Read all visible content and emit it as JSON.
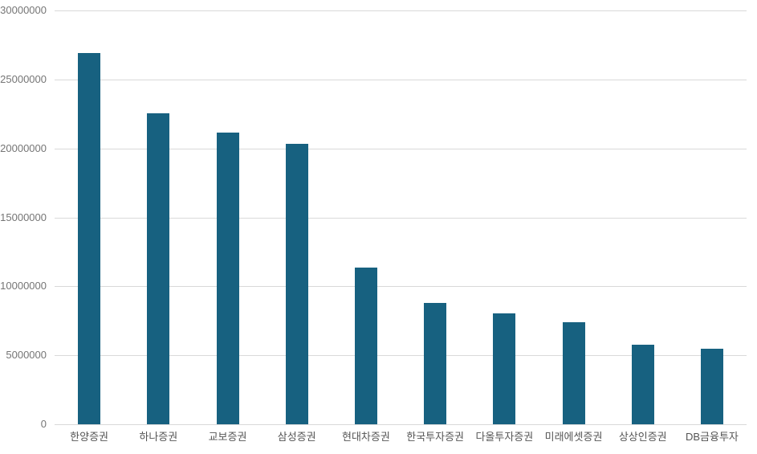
{
  "chart_data": {
    "type": "bar",
    "title": "",
    "categories": [
      "한양증권",
      "하나증권",
      "교보증권",
      "삼성증권",
      "현대차증권",
      "한국투자증권",
      "다올투자증권",
      "미래에셋증권",
      "상상인증권",
      "DB금융투자"
    ],
    "values": [
      26900000,
      22550000,
      21150000,
      20350000,
      11350000,
      8800000,
      8050000,
      7400000,
      5780000,
      5450000
    ],
    "xlabel": "",
    "ylabel": "",
    "ylim": [
      0,
      30000000
    ],
    "ytick_interval": 5000000,
    "ytick_labels": [
      "0",
      "5000000",
      "10000000",
      "15000000",
      "20000000",
      "25000000",
      "30000000"
    ],
    "grid": true,
    "legend": "none",
    "colors": {
      "bar": "#176180",
      "gridline": "#d9d9d9",
      "y_tick_label": "#757575",
      "x_tick_label": "#555555",
      "background": "#ffffff"
    }
  }
}
